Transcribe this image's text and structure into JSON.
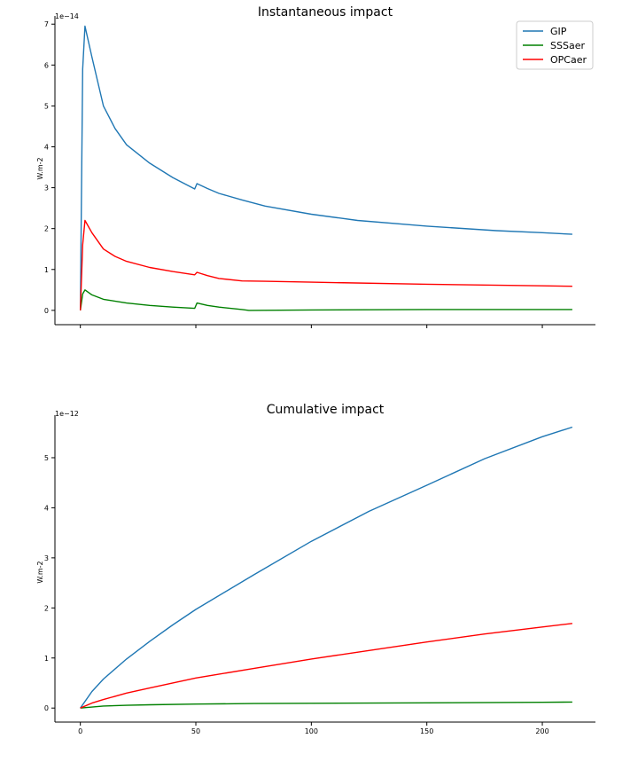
{
  "chart_data": [
    {
      "type": "line",
      "title": "Instantaneous impact",
      "ylabel": "W.m-2",
      "xlabel": "",
      "offset_text": "1e−14",
      "xlim": [
        -11,
        223
      ],
      "ylim": [
        -0.35,
        7.2
      ],
      "xticks": [
        0,
        50,
        100,
        150,
        200
      ],
      "xtick_labels_visible": false,
      "yticks": [
        0,
        1,
        2,
        3,
        4,
        5,
        6,
        7
      ],
      "ytick_labels": [
        "0",
        "1",
        "2",
        "3",
        "4",
        "5",
        "6",
        "7"
      ],
      "grid": false,
      "legend": {
        "position": "top-right",
        "entries": [
          "GIP",
          "SSSaer",
          "OPCaer"
        ]
      },
      "series": [
        {
          "name": "GIP",
          "color": "#1f77b4",
          "x": [
            0,
            1,
            2,
            5,
            10,
            15,
            20,
            30,
            40,
            49.5,
            50.5,
            55,
            60,
            70,
            80,
            100,
            120,
            150,
            180,
            200,
            213
          ],
          "y": [
            0,
            5.9,
            6.95,
            6.2,
            5.0,
            4.45,
            4.05,
            3.6,
            3.25,
            2.97,
            3.1,
            2.98,
            2.86,
            2.7,
            2.55,
            2.35,
            2.2,
            2.06,
            1.95,
            1.9,
            1.86
          ]
        },
        {
          "name": "SSSaer",
          "color": "#008000",
          "x": [
            0,
            1,
            2,
            5,
            10,
            20,
            30,
            40,
            49.5,
            50.5,
            55,
            60,
            70,
            73,
            100,
            150,
            200,
            213
          ],
          "y": [
            0,
            0.4,
            0.5,
            0.38,
            0.27,
            0.18,
            0.12,
            0.08,
            0.05,
            0.18,
            0.12,
            0.08,
            0.02,
            0.0,
            0.01,
            0.02,
            0.02,
            0.02
          ]
        },
        {
          "name": "OPCaer",
          "color": "#ff0000",
          "x": [
            0,
            1,
            2,
            5,
            10,
            15,
            20,
            30,
            40,
            49.5,
            50.5,
            55,
            60,
            70,
            80,
            100,
            150,
            200,
            213
          ],
          "y": [
            0,
            1.6,
            2.2,
            1.9,
            1.5,
            1.32,
            1.2,
            1.05,
            0.95,
            0.87,
            0.93,
            0.85,
            0.78,
            0.72,
            0.71,
            0.69,
            0.64,
            0.6,
            0.59
          ]
        }
      ]
    },
    {
      "type": "line",
      "title": "Cumulative impact",
      "ylabel": "W.m-2",
      "xlabel": "",
      "offset_text": "1e−12",
      "xlim": [
        -11,
        223
      ],
      "ylim": [
        -0.28,
        5.85
      ],
      "xticks": [
        0,
        50,
        100,
        150,
        200
      ],
      "xtick_labels": [
        "0",
        "50",
        "100",
        "150",
        "200"
      ],
      "yticks": [
        0,
        1,
        2,
        3,
        4,
        5
      ],
      "ytick_labels": [
        "0",
        "1",
        "2",
        "3",
        "4",
        "5"
      ],
      "grid": false,
      "series": [
        {
          "name": "GIP",
          "color": "#1f77b4",
          "x": [
            0,
            5,
            10,
            20,
            30,
            40,
            50,
            75,
            100,
            125,
            150,
            175,
            200,
            213
          ],
          "y": [
            0,
            0.33,
            0.58,
            0.98,
            1.33,
            1.66,
            1.97,
            2.66,
            3.33,
            3.93,
            4.45,
            4.98,
            5.42,
            5.61
          ]
        },
        {
          "name": "SSSaer",
          "color": "#008000",
          "x": [
            0,
            5,
            10,
            20,
            30,
            50,
            75,
            100,
            150,
            200,
            213
          ],
          "y": [
            0,
            0.02,
            0.04,
            0.055,
            0.065,
            0.08,
            0.09,
            0.095,
            0.105,
            0.115,
            0.12
          ]
        },
        {
          "name": "OPCaer",
          "color": "#ff0000",
          "x": [
            0,
            5,
            10,
            20,
            30,
            50,
            75,
            100,
            125,
            150,
            175,
            200,
            213
          ],
          "y": [
            0,
            0.1,
            0.17,
            0.3,
            0.4,
            0.6,
            0.79,
            0.98,
            1.15,
            1.32,
            1.48,
            1.62,
            1.69
          ]
        }
      ]
    }
  ]
}
